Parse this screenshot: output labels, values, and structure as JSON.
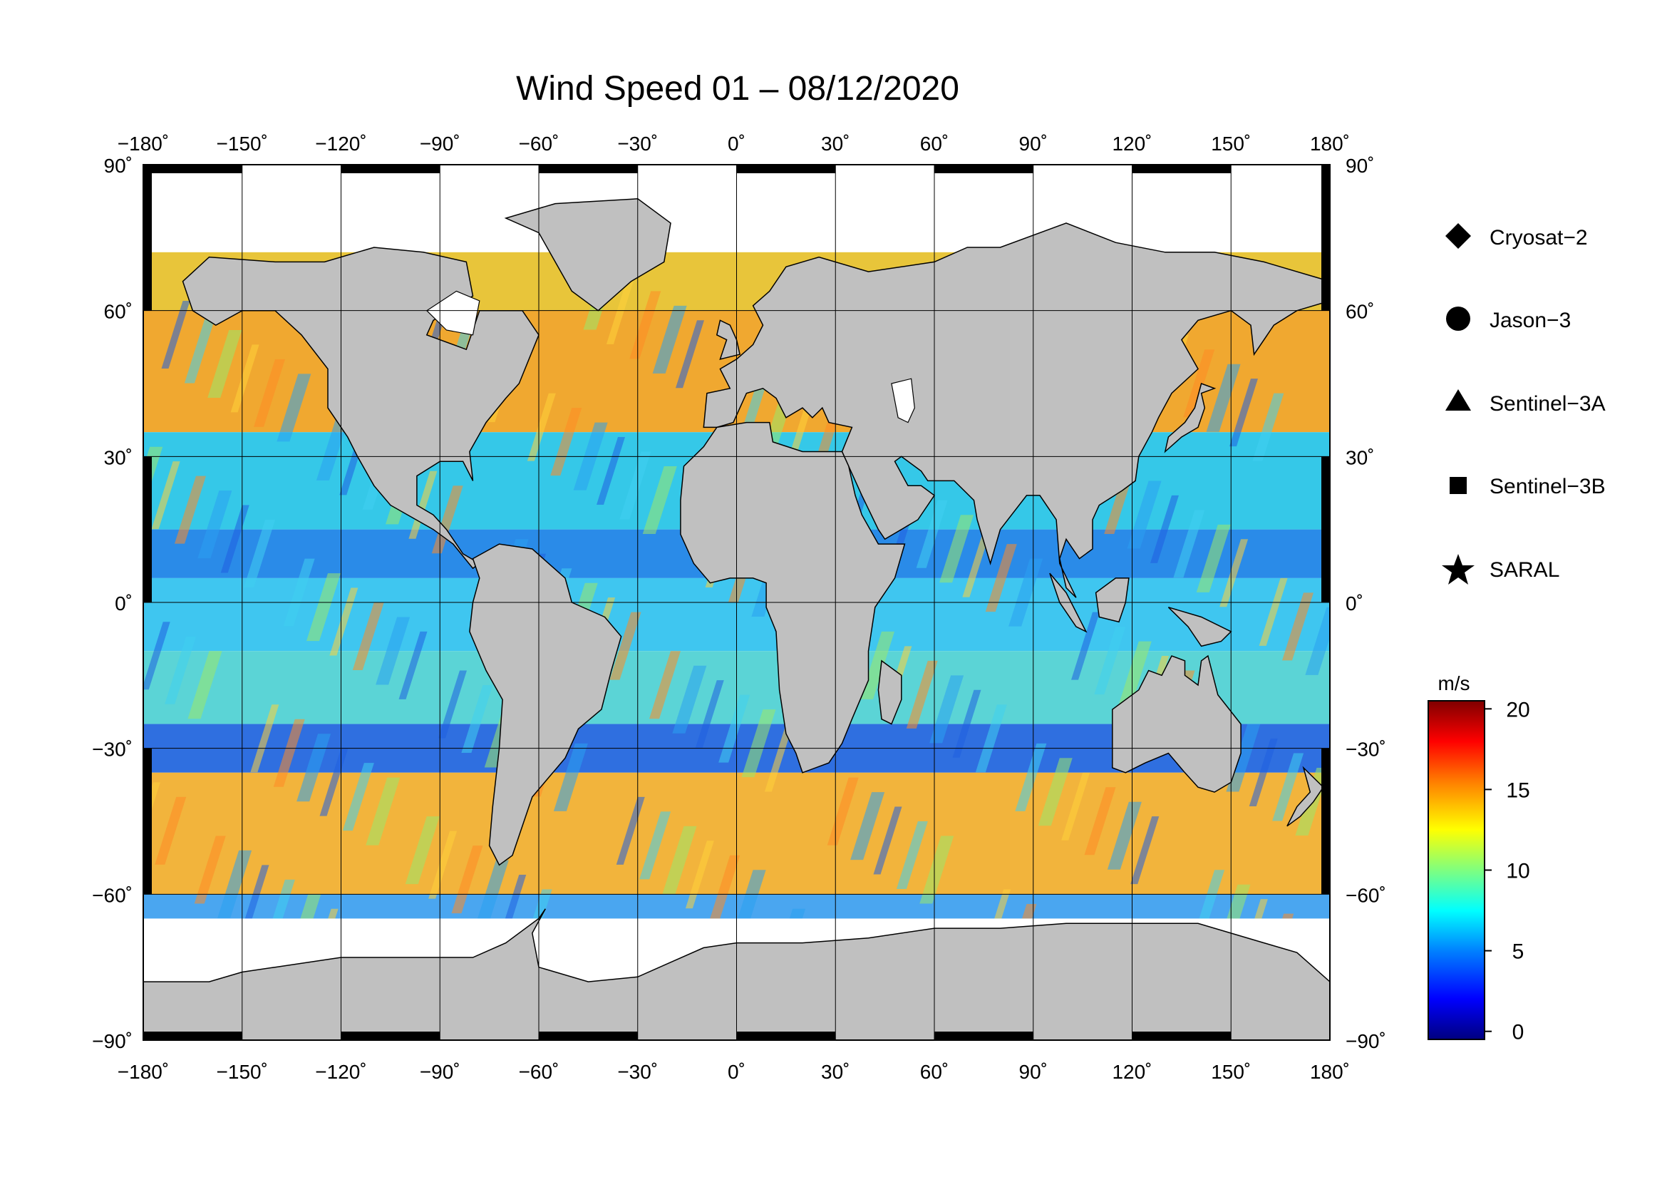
{
  "title": "Wind Speed 01 – 08/12/2020",
  "map": {
    "lon_labels": [
      "−180˚",
      "−150˚",
      "−120˚",
      "−90˚",
      "−60˚",
      "−30˚",
      "0˚",
      "30˚",
      "60˚",
      "90˚",
      "120˚",
      "150˚",
      "180˚"
    ],
    "lat_labels": [
      "90˚",
      "60˚",
      "30˚",
      "0˚",
      "−30˚",
      "−60˚",
      "−90˚"
    ],
    "lon_range": [
      -180,
      180
    ],
    "lat_range": [
      -90,
      90
    ],
    "lon_tick_values": [
      -180,
      -150,
      -120,
      -90,
      -60,
      -30,
      0,
      30,
      60,
      90,
      120,
      150,
      180
    ],
    "lat_tick_values": [
      90,
      60,
      30,
      0,
      -30,
      -60,
      -90
    ],
    "ocean_band_colors": [
      {
        "lat_north": 75,
        "lat_south": 60,
        "color": "#e8c53a"
      },
      {
        "lat_north": 60,
        "lat_south": 35,
        "color": "#f0a830"
      },
      {
        "lat_north": 35,
        "lat_south": 15,
        "color": "#35c8e8"
      },
      {
        "lat_north": 15,
        "lat_south": 5,
        "color": "#2a8be8"
      },
      {
        "lat_north": 5,
        "lat_south": -10,
        "color": "#3fc6f0"
      },
      {
        "lat_north": -10,
        "lat_south": -25,
        "color": "#5bd4d6"
      },
      {
        "lat_north": -25,
        "lat_south": -35,
        "color": "#2f6fe0"
      },
      {
        "lat_north": -35,
        "lat_south": -60,
        "color": "#f2b43c"
      },
      {
        "lat_north": -60,
        "lat_south": -68,
        "color": "#4aa6f0"
      }
    ],
    "land_color": "#c0c0c0",
    "ice_color": "#ffffff"
  },
  "legend": {
    "items": [
      {
        "label": "Cryosat−2",
        "icon": "diamond-icon"
      },
      {
        "label": "Jason−3",
        "icon": "circle-icon"
      },
      {
        "label": "Sentinel−3A",
        "icon": "triangle-icon"
      },
      {
        "label": "Sentinel−3B",
        "icon": "square-icon"
      },
      {
        "label": "SARAL",
        "icon": "star-icon"
      }
    ]
  },
  "colorbar": {
    "unit": "m/s",
    "ticks": [
      "20",
      "15",
      "10",
      "5",
      "0"
    ],
    "tick_values": [
      20,
      15,
      10,
      5,
      0
    ],
    "range": [
      -0.5,
      20.5
    ],
    "colors": [
      "#00007f",
      "#0000ff",
      "#007fff",
      "#00ffff",
      "#7fff7f",
      "#ffff00",
      "#ff7f00",
      "#ff0000",
      "#7f0000"
    ]
  }
}
